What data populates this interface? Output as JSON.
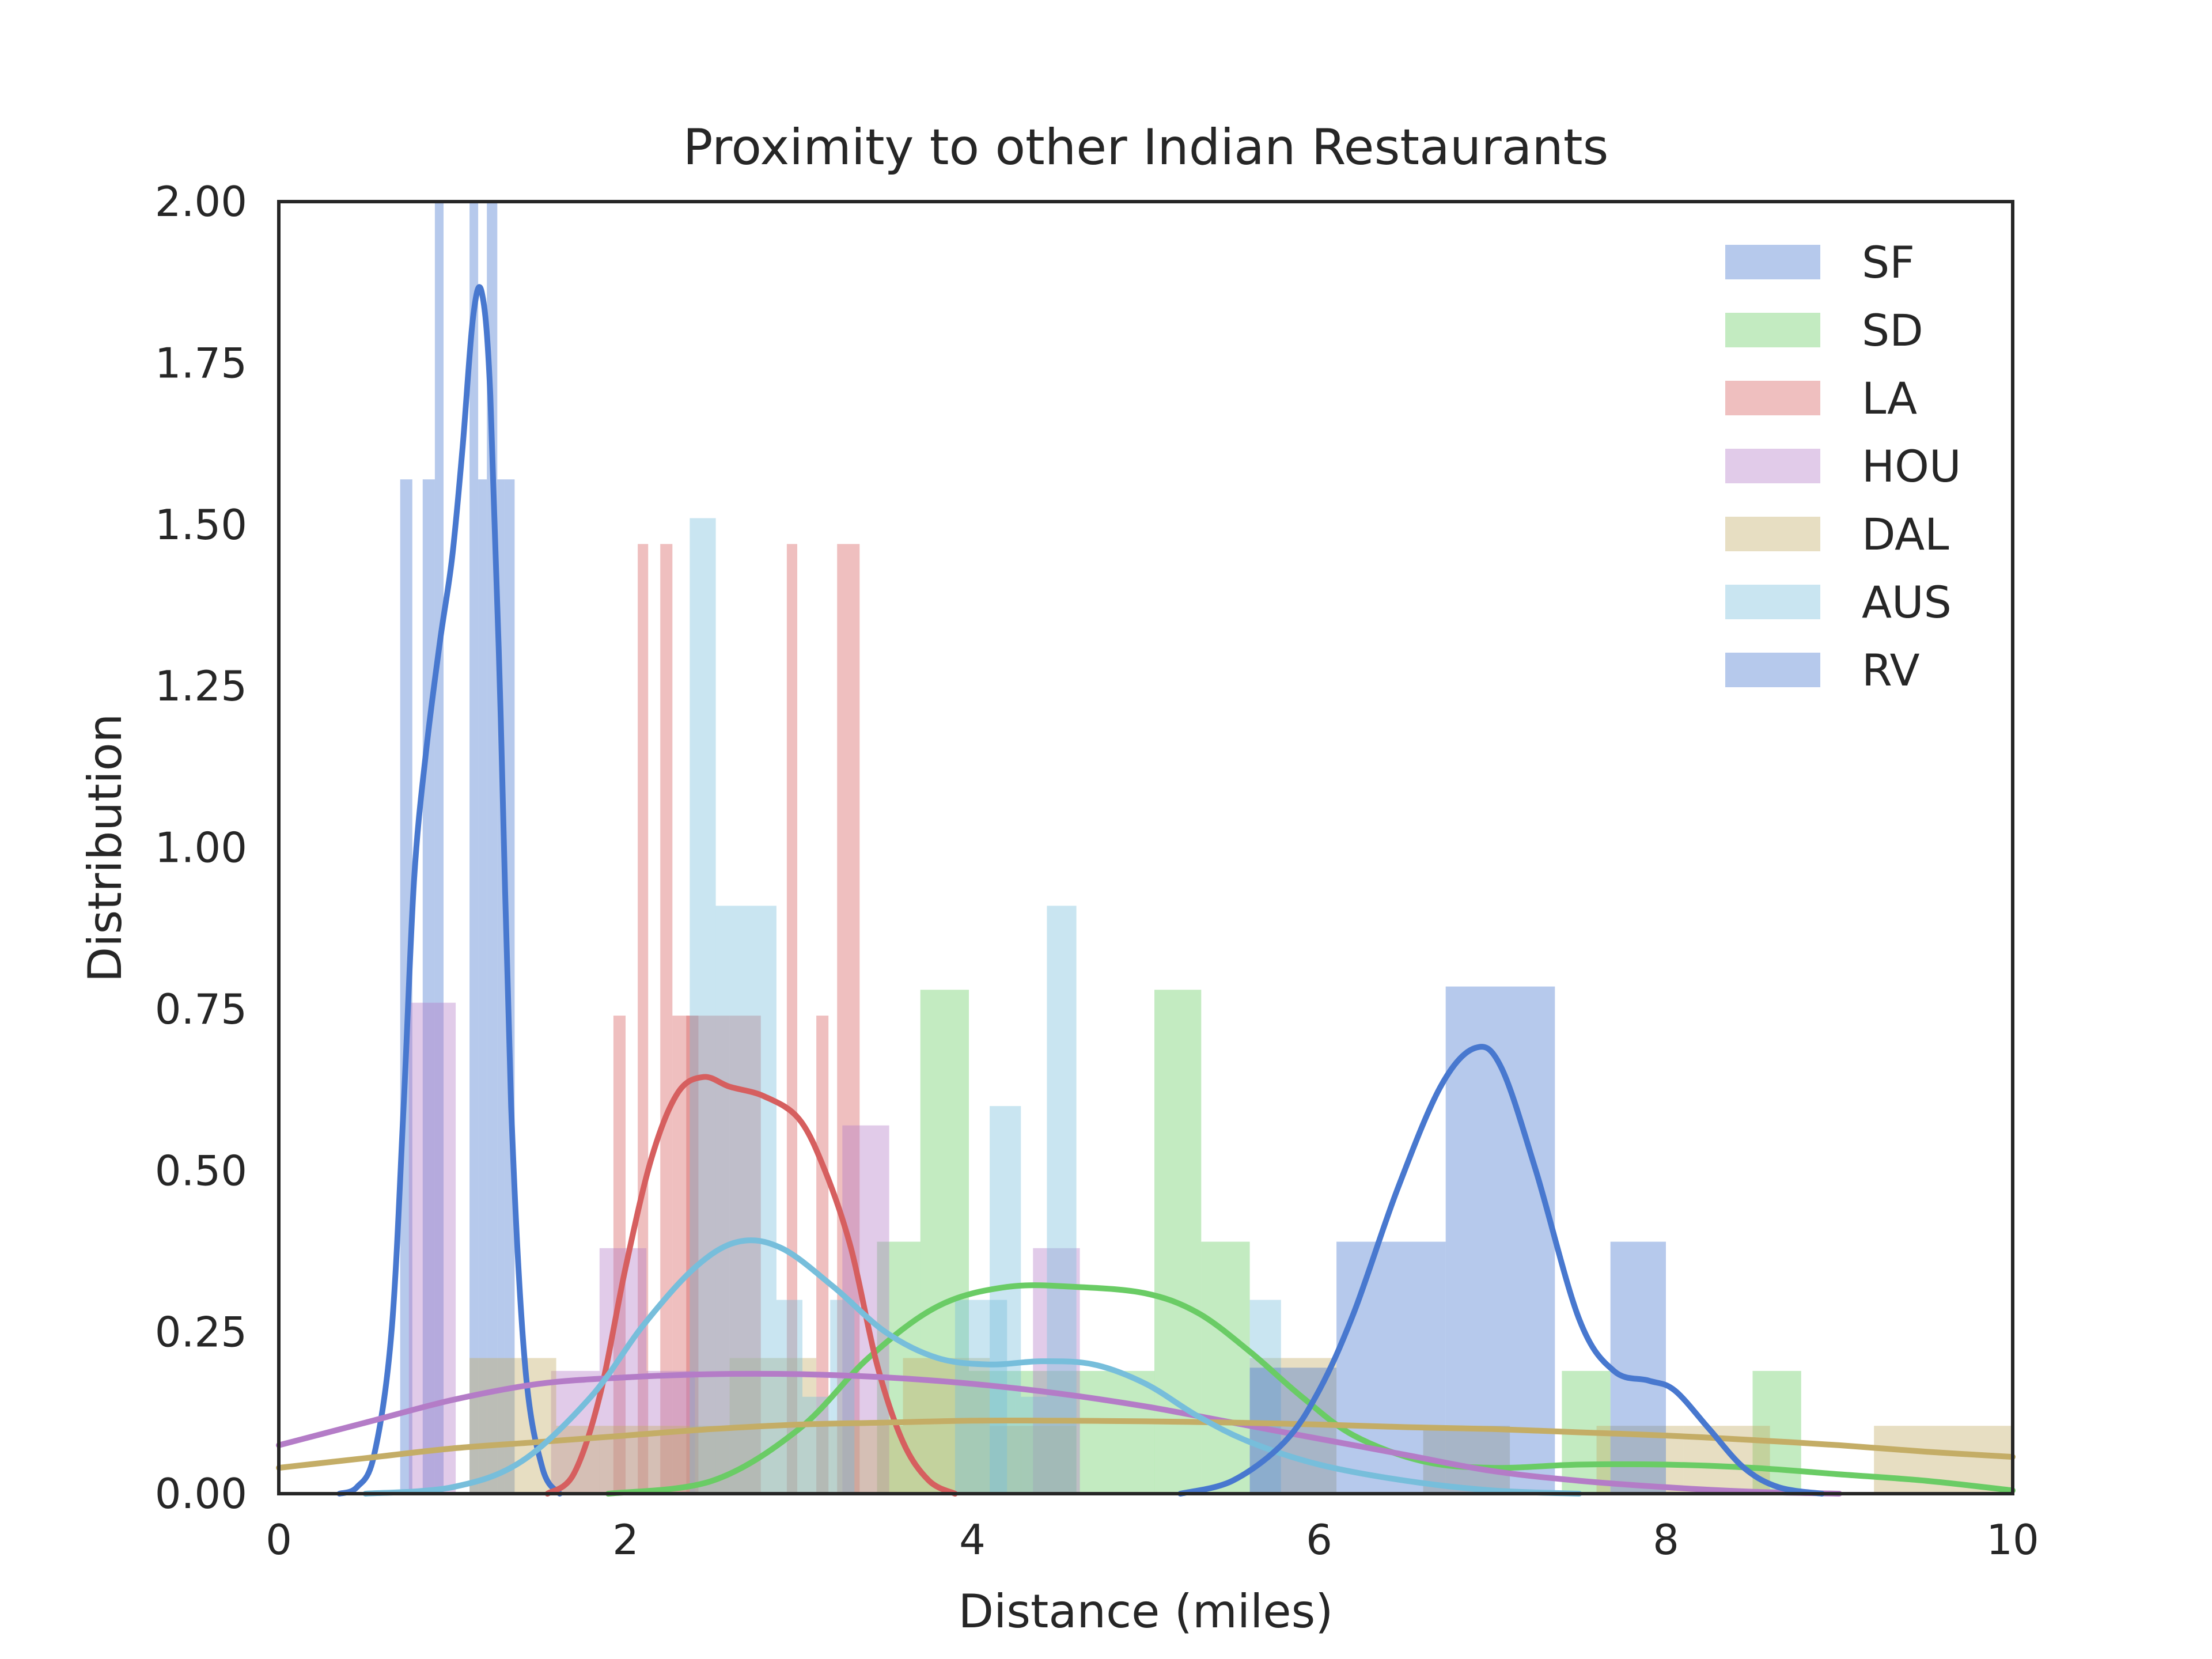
{
  "chart_data": {
    "type": "histogram+kde",
    "title": "Proximity to other Indian Restaurants",
    "xlabel": "Distance (miles)",
    "ylabel": "Distribution",
    "xlim": [
      0,
      10
    ],
    "ylim": [
      0,
      2.0
    ],
    "x_ticks": [
      0,
      2,
      4,
      6,
      8,
      10
    ],
    "x_tick_labels": [
      "0",
      "2",
      "4",
      "6",
      "8",
      "10"
    ],
    "y_ticks": [
      0,
      0.25,
      0.5,
      0.75,
      1.0,
      1.25,
      1.5,
      1.75,
      2.0
    ],
    "y_tick_labels": [
      "0.00",
      "0.25",
      "0.50",
      "0.75",
      "1.00",
      "1.25",
      "1.50",
      "1.75",
      "2.00"
    ],
    "grid": false,
    "legend_position": "top-right",
    "series": [
      {
        "name": "SF",
        "color": "#4878cf",
        "bars": [
          [
            0.7,
            0.77,
            1.57
          ],
          [
            0.77,
            0.83,
            0.0
          ],
          [
            0.83,
            0.9,
            1.57
          ],
          [
            0.9,
            0.95,
            2.0
          ],
          [
            0.95,
            1.1,
            0.0
          ],
          [
            1.1,
            1.15,
            2.0
          ],
          [
            1.15,
            1.2,
            1.57
          ],
          [
            1.2,
            1.26,
            2.0
          ],
          [
            1.26,
            1.3,
            1.57
          ],
          [
            1.3,
            1.36,
            1.57
          ]
        ],
        "kde": [
          [
            0.35,
            0.0
          ],
          [
            0.45,
            0.01
          ],
          [
            0.55,
            0.06
          ],
          [
            0.65,
            0.25
          ],
          [
            0.72,
            0.6
          ],
          [
            0.78,
            0.95
          ],
          [
            0.85,
            1.15
          ],
          [
            0.93,
            1.32
          ],
          [
            1.0,
            1.45
          ],
          [
            1.06,
            1.62
          ],
          [
            1.12,
            1.82
          ],
          [
            1.17,
            1.86
          ],
          [
            1.22,
            1.7
          ],
          [
            1.28,
            1.2
          ],
          [
            1.34,
            0.6
          ],
          [
            1.42,
            0.2
          ],
          [
            1.52,
            0.04
          ],
          [
            1.62,
            0.0
          ]
        ]
      },
      {
        "name": "SD",
        "color": "#6acc65",
        "bars": [
          [
            3.45,
            3.7,
            0.39
          ],
          [
            3.7,
            3.98,
            0.78
          ],
          [
            3.98,
            4.25,
            0.19
          ],
          [
            5.05,
            5.32,
            0.78
          ],
          [
            5.32,
            5.6,
            0.39
          ],
          [
            4.25,
            5.05,
            0.19
          ],
          [
            7.4,
            7.68,
            0.19
          ],
          [
            8.5,
            8.78,
            0.19
          ]
        ],
        "kde": [
          [
            1.9,
            0.0
          ],
          [
            2.5,
            0.02
          ],
          [
            3.0,
            0.1
          ],
          [
            3.4,
            0.21
          ],
          [
            3.8,
            0.29
          ],
          [
            4.2,
            0.32
          ],
          [
            4.6,
            0.32
          ],
          [
            5.0,
            0.31
          ],
          [
            5.3,
            0.28
          ],
          [
            5.6,
            0.22
          ],
          [
            5.9,
            0.15
          ],
          [
            6.2,
            0.09
          ],
          [
            6.6,
            0.05
          ],
          [
            7.0,
            0.04
          ],
          [
            7.5,
            0.045
          ],
          [
            8.0,
            0.045
          ],
          [
            8.5,
            0.04
          ],
          [
            9.0,
            0.03
          ],
          [
            9.5,
            0.02
          ],
          [
            10.0,
            0.005
          ]
        ]
      },
      {
        "name": "LA",
        "color": "#d65f5f",
        "bars": [
          [
            1.93,
            2.0,
            0.74
          ],
          [
            2.07,
            2.13,
            1.47
          ],
          [
            2.2,
            2.27,
            1.47
          ],
          [
            2.27,
            2.6,
            0.74
          ],
          [
            2.35,
            2.42,
            0.74
          ],
          [
            2.6,
            2.78,
            0.74
          ],
          [
            2.93,
            2.99,
            1.47
          ],
          [
            3.1,
            3.17,
            0.74
          ],
          [
            3.22,
            3.35,
            1.47
          ]
        ],
        "kde": [
          [
            1.55,
            0.0
          ],
          [
            1.7,
            0.03
          ],
          [
            1.85,
            0.15
          ],
          [
            2.0,
            0.35
          ],
          [
            2.15,
            0.52
          ],
          [
            2.3,
            0.62
          ],
          [
            2.45,
            0.645
          ],
          [
            2.6,
            0.63
          ],
          [
            2.8,
            0.615
          ],
          [
            3.0,
            0.58
          ],
          [
            3.15,
            0.5
          ],
          [
            3.3,
            0.38
          ],
          [
            3.45,
            0.2
          ],
          [
            3.6,
            0.08
          ],
          [
            3.75,
            0.02
          ],
          [
            3.9,
            0.0
          ]
        ]
      },
      {
        "name": "HOU",
        "color": "#b47cc7",
        "bars": [
          [
            0.75,
            1.02,
            0.76
          ],
          [
            1.57,
            1.85,
            0.19
          ],
          [
            1.85,
            2.12,
            0.38
          ],
          [
            3.25,
            3.52,
            0.57
          ],
          [
            4.35,
            4.62,
            0.38
          ],
          [
            2.12,
            2.4,
            0.19
          ]
        ],
        "kde": [
          [
            0.0,
            0.075
          ],
          [
            0.5,
            0.11
          ],
          [
            1.0,
            0.145
          ],
          [
            1.5,
            0.17
          ],
          [
            2.0,
            0.18
          ],
          [
            2.5,
            0.185
          ],
          [
            3.0,
            0.185
          ],
          [
            3.5,
            0.18
          ],
          [
            4.0,
            0.17
          ],
          [
            4.5,
            0.155
          ],
          [
            5.0,
            0.135
          ],
          [
            5.5,
            0.11
          ],
          [
            6.0,
            0.085
          ],
          [
            6.5,
            0.06
          ],
          [
            7.0,
            0.035
          ],
          [
            7.5,
            0.02
          ],
          [
            8.0,
            0.01
          ],
          [
            8.5,
            0.003
          ],
          [
            9.0,
            0.0
          ]
        ]
      },
      {
        "name": "DAL",
        "color": "#c4ad66",
        "bars": [
          [
            1.1,
            1.6,
            0.21
          ],
          [
            1.6,
            2.1,
            0.105
          ],
          [
            2.1,
            2.6,
            0.105
          ],
          [
            2.6,
            3.1,
            0.21
          ],
          [
            3.1,
            3.6,
            0.105
          ],
          [
            3.6,
            4.1,
            0.21
          ],
          [
            4.1,
            4.6,
            0.105
          ],
          [
            5.6,
            6.1,
            0.21
          ],
          [
            6.6,
            7.1,
            0.105
          ],
          [
            7.6,
            8.1,
            0.105
          ],
          [
            8.1,
            8.6,
            0.105
          ],
          [
            9.2,
            10.0,
            0.105
          ]
        ],
        "kde": [
          [
            0.0,
            0.04
          ],
          [
            0.5,
            0.055
          ],
          [
            1.0,
            0.07
          ],
          [
            1.5,
            0.08
          ],
          [
            2.0,
            0.09
          ],
          [
            2.5,
            0.1
          ],
          [
            3.0,
            0.107
          ],
          [
            3.5,
            0.11
          ],
          [
            4.0,
            0.113
          ],
          [
            4.5,
            0.113
          ],
          [
            5.0,
            0.112
          ],
          [
            5.5,
            0.11
          ],
          [
            6.0,
            0.107
          ],
          [
            6.5,
            0.103
          ],
          [
            7.0,
            0.1
          ],
          [
            7.5,
            0.095
          ],
          [
            8.0,
            0.09
          ],
          [
            8.5,
            0.083
          ],
          [
            9.0,
            0.075
          ],
          [
            9.5,
            0.065
          ],
          [
            10.0,
            0.057
          ]
        ]
      },
      {
        "name": "AUS",
        "color": "#77bedb",
        "bars": [
          [
            2.37,
            2.52,
            1.51
          ],
          [
            2.52,
            2.87,
            0.91
          ],
          [
            2.87,
            3.02,
            0.3
          ],
          [
            3.02,
            3.18,
            0.15
          ],
          [
            3.18,
            3.32,
            0.3
          ],
          [
            3.9,
            4.2,
            0.3
          ],
          [
            4.1,
            4.28,
            0.6
          ],
          [
            4.28,
            4.43,
            0.15
          ],
          [
            4.43,
            4.6,
            0.91
          ],
          [
            5.6,
            5.78,
            0.3
          ]
        ],
        "kde": [
          [
            0.5,
            0.0
          ],
          [
            1.0,
            0.01
          ],
          [
            1.4,
            0.05
          ],
          [
            1.8,
            0.15
          ],
          [
            2.1,
            0.26
          ],
          [
            2.4,
            0.35
          ],
          [
            2.65,
            0.39
          ],
          [
            2.9,
            0.38
          ],
          [
            3.2,
            0.32
          ],
          [
            3.5,
            0.25
          ],
          [
            3.8,
            0.21
          ],
          [
            4.1,
            0.2
          ],
          [
            4.4,
            0.205
          ],
          [
            4.7,
            0.2
          ],
          [
            5.0,
            0.17
          ],
          [
            5.3,
            0.12
          ],
          [
            5.6,
            0.08
          ],
          [
            6.0,
            0.045
          ],
          [
            6.5,
            0.02
          ],
          [
            7.0,
            0.005
          ],
          [
            7.5,
            0.0
          ]
        ]
      },
      {
        "name": "RV",
        "color": "#4878cf",
        "bars": [
          [
            6.1,
            6.73,
            0.39
          ],
          [
            6.73,
            7.36,
            0.785
          ],
          [
            7.36,
            7.68,
            0.0
          ],
          [
            7.68,
            8.0,
            0.39
          ],
          [
            8.0,
            8.3,
            0.0
          ],
          [
            5.6,
            6.1,
            0.195
          ]
        ],
        "kde": [
          [
            5.2,
            0.0
          ],
          [
            5.5,
            0.02
          ],
          [
            5.8,
            0.08
          ],
          [
            6.0,
            0.16
          ],
          [
            6.2,
            0.28
          ],
          [
            6.45,
            0.47
          ],
          [
            6.7,
            0.63
          ],
          [
            6.9,
            0.69
          ],
          [
            7.05,
            0.66
          ],
          [
            7.25,
            0.5
          ],
          [
            7.5,
            0.27
          ],
          [
            7.7,
            0.19
          ],
          [
            7.9,
            0.175
          ],
          [
            8.05,
            0.16
          ],
          [
            8.25,
            0.1
          ],
          [
            8.45,
            0.04
          ],
          [
            8.65,
            0.01
          ],
          [
            8.9,
            0.0
          ]
        ]
      }
    ]
  }
}
